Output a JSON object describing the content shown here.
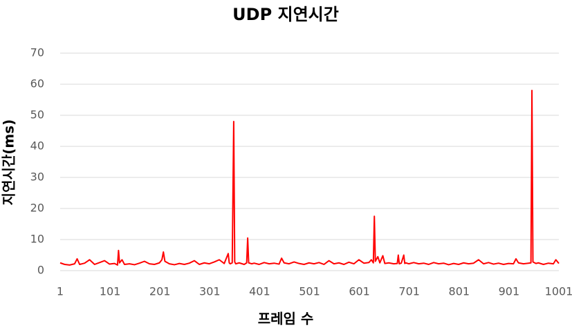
{
  "chart_data": {
    "type": "line",
    "title": "UDP 지연시간",
    "x_label": "프레임 수",
    "y_label": "지연시간(ms)",
    "x": [
      1,
      10,
      20,
      30,
      35,
      40,
      50,
      60,
      70,
      80,
      90,
      100,
      110,
      116,
      118,
      120,
      125,
      130,
      140,
      150,
      160,
      170,
      180,
      190,
      200,
      205,
      208,
      211,
      220,
      230,
      240,
      250,
      260,
      270,
      280,
      290,
      300,
      310,
      320,
      330,
      338,
      340,
      342,
      346,
      349,
      351,
      353,
      360,
      370,
      375,
      377,
      379,
      385,
      390,
      400,
      410,
      420,
      430,
      440,
      445,
      450,
      460,
      470,
      480,
      490,
      500,
      510,
      520,
      530,
      540,
      550,
      560,
      570,
      580,
      590,
      600,
      610,
      620,
      625,
      629,
      631,
      633,
      638,
      642,
      648,
      652,
      660,
      670,
      677,
      679,
      681,
      685,
      690,
      692,
      694,
      700,
      710,
      720,
      730,
      740,
      750,
      760,
      770,
      780,
      790,
      800,
      810,
      820,
      830,
      840,
      850,
      860,
      870,
      880,
      890,
      900,
      910,
      915,
      920,
      930,
      940,
      945,
      947,
      949,
      955,
      960,
      970,
      980,
      990,
      995,
      1001
    ],
    "values": [
      2.5,
      2,
      1.8,
      2.2,
      3.8,
      2,
      2.4,
      3.5,
      2,
      2.6,
      3.2,
      2.1,
      2.3,
      1.8,
      6.5,
      2.5,
      3.5,
      2,
      2.2,
      1.9,
      2.4,
      3,
      2.2,
      2,
      2.5,
      3.5,
      6,
      3,
      2.2,
      1.9,
      2.3,
      2,
      2.4,
      3.2,
      2,
      2.5,
      2.2,
      2.8,
      3.5,
      2.3,
      5.5,
      2.5,
      2.2,
      2.5,
      48,
      2.8,
      2.2,
      2.5,
      2,
      2.5,
      10.5,
      2.5,
      2.2,
      2.4,
      2,
      2.6,
      2.2,
      2.4,
      2.1,
      4,
      2.5,
      2.2,
      2.8,
      2.3,
      2,
      2.5,
      2.2,
      2.6,
      2,
      3.2,
      2.2,
      2.5,
      2,
      2.7,
      2.2,
      3.5,
      2.4,
      2.6,
      3.5,
      2.5,
      17.5,
      3,
      4.5,
      2.5,
      4.8,
      2.3,
      2.5,
      2.2,
      2.3,
      5,
      2.2,
      2.4,
      5,
      2.3,
      2.5,
      2.2,
      2.6,
      2.2,
      2.4,
      2,
      2.6,
      2.2,
      2.4,
      1.9,
      2.3,
      2,
      2.5,
      2.2,
      2.4,
      3.5,
      2.2,
      2.6,
      2.1,
      2.4,
      2,
      2.3,
      2.2,
      3.8,
      2.5,
      2.2,
      2.4,
      2.5,
      58,
      2.8,
      2.3,
      2.5,
      2,
      2.4,
      2.2,
      3.5,
      2.3
    ],
    "color": "#ff0000",
    "xlim": [
      1,
      1001
    ],
    "xticks": [
      1,
      101,
      201,
      301,
      401,
      501,
      601,
      701,
      801,
      901,
      1001
    ],
    "ylim": [
      0,
      70
    ],
    "yticks": [
      0,
      10,
      20,
      30,
      40,
      50,
      60,
      70
    ],
    "grid": true
  }
}
